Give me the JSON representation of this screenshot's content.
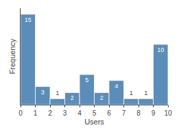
{
  "chart_data": {
    "type": "histogram",
    "bins": [
      0,
      1,
      2,
      3,
      4,
      5,
      6,
      7,
      8,
      9,
      10
    ],
    "values": [
      15,
      3,
      1,
      2,
      5,
      2,
      4,
      1,
      1,
      10
    ],
    "color": "#5b8db8",
    "xlabel": "Users",
    "ylabel": "Frequency",
    "xlim": [
      0,
      10
    ],
    "ylim": [
      0,
      16
    ],
    "xticks": [
      0,
      1,
      2,
      3,
      4,
      5,
      6,
      7,
      8,
      9,
      10
    ],
    "data_labels": true,
    "tick_labels": "x",
    "grid": false
  }
}
